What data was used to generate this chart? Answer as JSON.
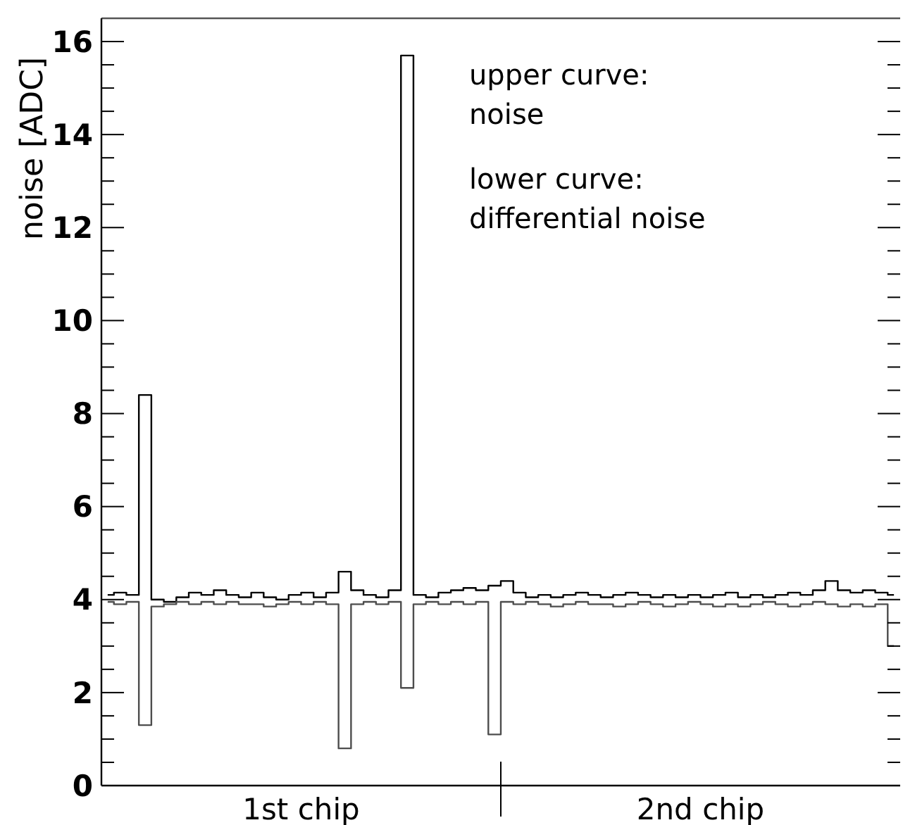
{
  "chart_data": {
    "type": "step",
    "ylabel": "noise [ADC]",
    "annotations": [
      "upper curve:\nnoise",
      "lower curve:\ndifferential noise",
      "1st chip",
      "2nd chip"
    ],
    "categories": [
      null,
      null,
      null,
      null,
      null,
      null,
      null,
      null,
      null,
      null,
      null,
      null,
      null,
      null,
      null,
      null,
      null,
      null,
      null,
      null,
      null,
      null,
      null,
      null,
      null,
      null,
      null,
      null,
      null,
      null,
      null,
      null,
      null,
      null,
      null,
      null,
      null,
      null,
      null,
      null,
      null,
      null,
      null,
      null,
      null,
      null,
      null,
      null,
      null,
      null,
      null,
      null,
      null,
      null,
      null,
      null,
      null,
      null,
      null,
      null,
      null,
      null,
      null,
      null
    ],
    "ylim": [
      0,
      16.5
    ],
    "yticks": [
      0,
      {
        "value": 0.5,
        "label": null
      },
      {
        "value": 1,
        "label": null
      },
      {
        "value": 1.5,
        "label": null
      },
      2,
      {
        "value": 2.5,
        "label": null
      },
      {
        "value": 3,
        "label": null
      },
      {
        "value": 3.5,
        "label": null
      },
      4,
      {
        "value": 4.5,
        "label": null
      },
      {
        "value": 5,
        "label": null
      },
      {
        "value": 5.5,
        "label": null
      },
      6,
      {
        "value": 6.5,
        "label": null
      },
      {
        "value": 7,
        "label": null
      },
      {
        "value": 7.5,
        "label": null
      },
      8,
      {
        "value": 8.5,
        "label": null
      },
      {
        "value": 9,
        "label": null
      },
      {
        "value": 9.5,
        "label": null
      },
      10,
      {
        "value": 10.5,
        "label": null
      },
      {
        "value": 11,
        "label": null
      },
      {
        "value": 11.5,
        "label": null
      },
      12,
      {
        "value": 12.5,
        "label": null
      },
      {
        "value": 13,
        "label": null
      },
      {
        "value": 13.5,
        "label": null
      },
      14,
      {
        "value": 14.5,
        "label": null
      },
      {
        "value": 15,
        "label": null
      },
      {
        "value": 15.5,
        "label": null
      },
      16
    ],
    "grid": false,
    "marker": "none",
    "line_style": "solid",
    "series": [
      {
        "color": "#000000",
        "values": [
          4.1,
          4.15,
          4.1,
          8.4,
          4.0,
          3.95,
          4.05,
          4.15,
          4.1,
          4.2,
          4.1,
          4.05,
          4.15,
          4.05,
          4.0,
          4.1,
          4.15,
          4.05,
          4.15,
          4.6,
          4.2,
          4.1,
          4.05,
          4.2,
          15.7,
          4.1,
          4.05,
          4.15,
          4.2,
          4.25,
          4.2,
          4.3,
          4.4,
          4.15,
          4.05,
          4.1,
          4.05,
          4.1,
          4.15,
          4.1,
          4.05,
          4.1,
          4.15,
          4.1,
          4.05,
          4.1,
          4.05,
          4.1,
          4.05,
          4.1,
          4.15,
          4.05,
          4.1,
          4.05,
          4.1,
          4.15,
          4.1,
          4.2,
          4.4,
          4.2,
          4.15,
          4.2,
          4.15,
          4.1
        ]
      },
      {
        "color": "#4d4d4d",
        "values": [
          3.95,
          3.9,
          3.95,
          1.3,
          3.85,
          3.9,
          3.95,
          3.9,
          3.95,
          3.9,
          3.95,
          3.9,
          3.9,
          3.85,
          3.9,
          3.95,
          3.9,
          3.95,
          3.9,
          0.8,
          3.9,
          3.95,
          3.9,
          3.95,
          2.1,
          3.9,
          3.95,
          3.9,
          3.95,
          3.9,
          3.95,
          1.1,
          3.95,
          3.9,
          3.95,
          3.9,
          3.85,
          3.9,
          3.95,
          3.9,
          3.9,
          3.85,
          3.9,
          3.95,
          3.9,
          3.85,
          3.9,
          3.95,
          3.9,
          3.85,
          3.9,
          3.85,
          3.9,
          3.95,
          3.9,
          3.85,
          3.9,
          3.95,
          3.9,
          3.85,
          3.9,
          3.85,
          3.9,
          3.0
        ]
      }
    ]
  }
}
